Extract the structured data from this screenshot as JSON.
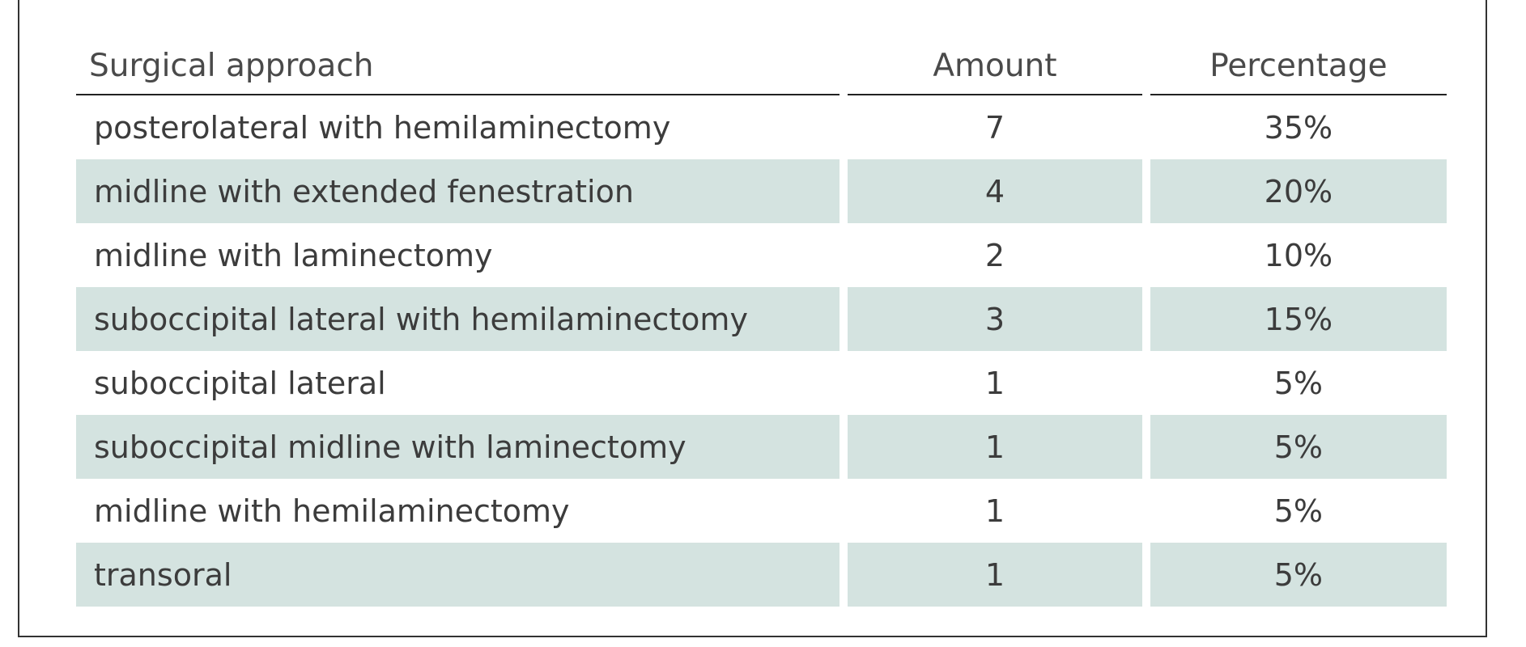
{
  "table": {
    "headers": {
      "approach": "Surgical approach",
      "amount": "Amount",
      "percentage": "Percentage"
    },
    "rows": [
      {
        "approach": "posterolateral with hemilaminectomy",
        "amount": "7",
        "percentage": "35%"
      },
      {
        "approach": "midline with extended fenestration",
        "amount": "4",
        "percentage": "20%"
      },
      {
        "approach": "midline with laminectomy",
        "amount": "2",
        "percentage": "10%"
      },
      {
        "approach": "suboccipital lateral with hemilaminectomy",
        "amount": "3",
        "percentage": "15%"
      },
      {
        "approach": "suboccipital lateral",
        "amount": "1",
        "percentage": "5%"
      },
      {
        "approach": "suboccipital midline with laminectomy",
        "amount": "1",
        "percentage": "5%"
      },
      {
        "approach": "midline with hemilaminectomy",
        "amount": "1",
        "percentage": "5%"
      },
      {
        "approach": "transoral",
        "amount": "1",
        "percentage": "5%"
      }
    ]
  },
  "colors": {
    "shaded_row": "#d4e3e0",
    "border": "#333333",
    "text": "#3c3c3c"
  }
}
